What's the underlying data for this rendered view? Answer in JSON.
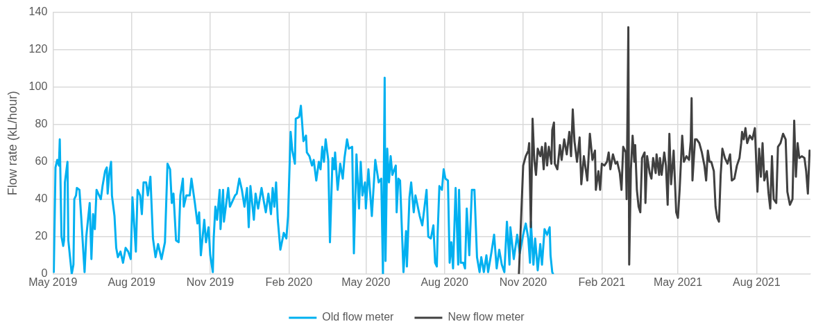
{
  "chart_data": {
    "type": "line",
    "ylabel": "Flow rate (kL/hour)",
    "xlim": [
      "2019-05-01",
      "2021-10-03"
    ],
    "xticks": [
      {
        "value": "2019-05-01",
        "label": "May 2019"
      },
      {
        "value": "2019-08-01",
        "label": "Aug 2019"
      },
      {
        "value": "2019-11-01",
        "label": "Nov 2019"
      },
      {
        "value": "2020-02-01",
        "label": "Feb 2020"
      },
      {
        "value": "2020-05-01",
        "label": "May 2020"
      },
      {
        "value": "2020-08-01",
        "label": "Aug 2020"
      },
      {
        "value": "2020-11-01",
        "label": "Nov 2020"
      },
      {
        "value": "2021-02-01",
        "label": "Feb 2021"
      },
      {
        "value": "2021-05-01",
        "label": "May 2021"
      },
      {
        "value": "2021-08-01",
        "label": "Aug 2021"
      }
    ],
    "ylim": [
      0,
      140
    ],
    "yticks": [
      0,
      20,
      40,
      60,
      80,
      100,
      120,
      140
    ],
    "grid": true,
    "legend": "bottom",
    "marker": "none",
    "line_style": "solid",
    "series": [
      {
        "name": "Old flow meter",
        "color": "#00b0f0",
        "x": [
          "2019-05-02",
          "2019-05-04",
          "2019-05-06",
          "2019-05-08",
          "2019-05-09",
          "2019-05-11",
          "2019-05-13",
          "2019-05-14",
          "2019-05-15",
          "2019-05-18",
          "2019-05-19",
          "2019-05-23",
          "2019-05-25",
          "2019-05-26",
          "2019-05-28",
          "2019-05-29",
          "2019-06-01",
          "2019-06-03",
          "2019-06-07",
          "2019-06-09",
          "2019-06-13",
          "2019-06-15",
          "2019-06-17",
          "2019-06-19",
          "2019-06-21",
          "2019-06-26",
          "2019-06-28",
          "2019-07-01",
          "2019-07-03",
          "2019-07-04",
          "2019-07-06",
          "2019-07-08",
          "2019-07-09",
          "2019-07-12",
          "2019-07-14",
          "2019-07-16",
          "2019-07-19",
          "2019-07-22",
          "2019-07-25",
          "2019-07-28",
          "2019-07-31",
          "2019-08-02",
          "2019-08-06",
          "2019-08-08",
          "2019-08-11",
          "2019-08-13",
          "2019-08-15",
          "2019-08-18",
          "2019-08-20",
          "2019-08-23",
          "2019-08-26",
          "2019-08-29",
          "2019-09-01",
          "2019-09-05",
          "2019-09-09",
          "2019-09-12",
          "2019-09-15",
          "2019-09-17",
          "2019-09-19",
          "2019-09-22",
          "2019-09-25",
          "2019-09-27",
          "2019-09-30",
          "2019-10-01",
          "2019-10-04",
          "2019-10-08",
          "2019-10-10",
          "2019-10-14",
          "2019-10-17",
          "2019-10-19",
          "2019-10-21",
          "2019-10-25",
          "2019-10-27",
          "2019-10-30",
          "2019-11-01",
          "2019-11-04",
          "2019-11-05",
          "2019-11-07",
          "2019-11-09",
          "2019-11-12",
          "2019-11-13",
          "2019-11-16",
          "2019-11-17",
          "2019-11-22",
          "2019-11-24",
          "2019-11-30",
          "2019-12-02",
          "2019-12-05",
          "2019-12-08",
          "2019-12-11",
          "2019-12-14",
          "2019-12-16",
          "2019-12-18",
          "2019-12-22",
          "2019-12-24",
          "2019-12-27",
          "2019-12-31",
          "2020-01-03",
          "2020-01-05",
          "2020-01-08",
          "2020-01-11",
          "2020-01-13",
          "2020-01-15",
          "2020-01-17",
          "2020-01-19",
          "2020-01-22",
          "2020-01-26",
          "2020-01-29",
          "2020-01-31",
          "2020-02-03",
          "2020-02-05",
          "2020-02-08",
          "2020-02-09",
          "2020-02-13",
          "2020-02-15",
          "2020-02-18",
          "2020-02-21",
          "2020-02-22",
          "2020-02-25",
          "2020-02-28",
          "2020-03-01",
          "2020-03-04",
          "2020-03-07",
          "2020-03-09",
          "2020-03-11",
          "2020-03-13",
          "2020-03-15",
          "2020-03-18",
          "2020-03-20",
          "2020-03-23",
          "2020-03-25",
          "2020-03-26",
          "2020-03-29",
          "2020-04-01",
          "2020-04-04",
          "2020-04-06",
          "2020-04-09",
          "2020-04-11",
          "2020-04-15",
          "2020-04-17",
          "2020-04-20",
          "2020-04-23",
          "2020-04-25",
          "2020-04-27",
          "2020-04-30",
          "2020-05-01",
          "2020-05-04",
          "2020-05-08",
          "2020-05-12",
          "2020-05-16",
          "2020-05-19",
          "2020-05-21",
          "2020-05-23",
          "2020-05-24",
          "2020-05-26",
          "2020-05-28",
          "2020-05-30",
          "2020-06-01",
          "2020-06-05",
          "2020-06-06",
          "2020-06-08",
          "2020-06-10",
          "2020-06-14",
          "2020-06-17",
          "2020-06-18",
          "2020-06-21",
          "2020-06-23",
          "2020-06-26",
          "2020-06-28",
          "2020-07-03",
          "2020-07-06",
          "2020-07-11",
          "2020-07-13",
          "2020-07-16",
          "2020-07-19",
          "2020-07-21",
          "2020-07-23",
          "2020-07-24",
          "2020-07-26",
          "2020-07-29",
          "2020-07-31",
          "2020-08-02",
          "2020-08-05",
          "2020-08-07",
          "2020-08-09",
          "2020-08-11",
          "2020-08-14",
          "2020-08-17",
          "2020-08-18",
          "2020-08-20",
          "2020-08-23",
          "2020-08-25",
          "2020-08-27",
          "2020-08-30",
          "2020-09-02",
          "2020-09-05",
          "2020-09-08",
          "2020-09-11",
          "2020-09-13",
          "2020-09-16",
          "2020-09-19",
          "2020-09-21",
          "2020-09-25",
          "2020-09-28",
          "2020-10-01",
          "2020-10-04",
          "2020-10-07",
          "2020-10-10",
          "2020-10-13",
          "2020-10-16",
          "2020-10-17",
          "2020-10-21",
          "2020-10-25",
          "2020-10-28",
          "2020-11-01",
          "2020-11-04",
          "2020-11-07",
          "2020-11-09",
          "2020-11-10",
          "2020-11-13",
          "2020-11-15",
          "2020-11-18",
          "2020-11-21",
          "2020-11-23",
          "2020-11-26",
          "2020-11-29",
          "2020-12-02",
          "2020-12-03",
          "2020-12-05",
          "2020-12-06"
        ],
        "values": [
          1,
          57,
          61,
          58,
          72,
          20,
          15,
          18,
          49,
          60,
          18,
          0,
          5,
          40,
          42,
          46,
          45,
          31,
          1,
          20,
          38,
          8,
          32,
          24,
          45,
          40,
          47,
          55,
          57,
          43,
          54,
          60,
          42,
          31,
          14,
          9,
          12,
          6,
          14,
          12,
          8,
          41,
          12,
          45,
          42,
          32,
          49,
          49,
          42,
          52,
          19,
          9,
          16,
          8,
          17,
          59,
          56,
          38,
          43,
          18,
          17,
          42,
          51,
          36,
          42,
          42,
          51,
          38,
          27,
          33,
          10,
          29,
          17,
          25,
          10,
          1,
          19,
          36,
          29,
          45,
          24,
          45,
          28,
          46,
          36,
          42,
          43,
          51,
          45,
          36,
          46,
          25,
          47,
          29,
          43,
          35,
          46,
          38,
          33,
          43,
          32,
          46,
          36,
          49,
          29,
          13,
          22,
          19,
          31,
          76,
          66,
          59,
          83,
          84,
          90,
          71,
          74,
          65,
          63,
          58,
          61,
          50,
          60,
          56,
          68,
          60,
          72,
          61,
          17,
          62,
          56,
          65,
          45,
          59,
          51,
          62,
          72,
          67,
          68,
          11,
          64,
          35,
          60,
          42,
          49,
          35,
          56,
          31,
          61,
          49,
          51,
          0,
          105,
          7,
          67,
          49,
          63,
          53,
          58,
          33,
          51,
          50,
          1,
          23,
          4,
          41,
          49,
          33,
          42,
          31,
          26,
          45,
          20,
          19,
          26,
          6,
          4,
          22,
          47,
          45,
          56,
          51,
          50,
          6,
          17,
          3,
          46,
          5,
          45,
          6,
          6,
          3,
          35,
          10,
          45,
          45,
          9,
          1,
          9,
          1,
          10,
          1,
          12,
          21,
          3,
          13,
          5,
          1,
          28,
          5,
          25,
          8,
          21,
          11,
          21,
          27,
          19,
          6,
          28,
          5,
          19,
          2,
          16,
          5,
          24,
          21,
          25,
          10,
          1,
          0
        ]
      },
      {
        "name": "New flow meter",
        "color": "#404040",
        "x": [
          "2020-10-27",
          "2020-11-01",
          "2020-11-04",
          "2020-11-07",
          "2020-11-08",
          "2020-11-10",
          "2020-11-12",
          "2020-11-14",
          "2020-11-16",
          "2020-11-18",
          "2020-11-21",
          "2020-11-23",
          "2020-11-25",
          "2020-11-27",
          "2020-11-29",
          "2020-12-01",
          "2020-12-04",
          "2020-12-05",
          "2020-12-07",
          "2020-12-08",
          "2020-12-11",
          "2020-12-14",
          "2020-12-16",
          "2020-12-19",
          "2020-12-22",
          "2020-12-25",
          "2020-12-27",
          "2020-12-29",
          "2020-12-31",
          "2021-01-03",
          "2021-01-06",
          "2021-01-08",
          "2021-01-11",
          "2021-01-15",
          "2021-01-18",
          "2021-01-21",
          "2021-01-24",
          "2021-01-25",
          "2021-01-28",
          "2021-01-30",
          "2021-02-01",
          "2021-02-04",
          "2021-02-07",
          "2021-02-09",
          "2021-02-11",
          "2021-02-14",
          "2021-02-17",
          "2021-02-19",
          "2021-02-22",
          "2021-02-24",
          "2021-02-26",
          "2021-03-01",
          "2021-03-02",
          "2021-03-04",
          "2021-03-05",
          "2021-03-07",
          "2021-03-09",
          "2021-03-11",
          "2021-03-12",
          "2021-03-14",
          "2021-03-16",
          "2021-03-18",
          "2021-03-20",
          "2021-03-23",
          "2021-03-24",
          "2021-03-26",
          "2021-03-29",
          "2021-03-31",
          "2021-04-02",
          "2021-04-05",
          "2021-04-06",
          "2021-04-09",
          "2021-04-10",
          "2021-04-12",
          "2021-04-15",
          "2021-04-17",
          "2021-04-19",
          "2021-04-21",
          "2021-04-23",
          "2021-04-26",
          "2021-04-29",
          "2021-05-01",
          "2021-05-03",
          "2021-05-06",
          "2021-05-08",
          "2021-05-11",
          "2021-05-14",
          "2021-05-16",
          "2021-05-17",
          "2021-05-18",
          "2021-05-21",
          "2021-05-23",
          "2021-05-26",
          "2021-05-29",
          "2021-06-01",
          "2021-06-03",
          "2021-06-05",
          "2021-06-07",
          "2021-06-09",
          "2021-06-12",
          "2021-06-14",
          "2021-06-16",
          "2021-06-18",
          "2021-06-20",
          "2021-06-22",
          "2021-06-25",
          "2021-06-28",
          "2021-07-01",
          "2021-07-03",
          "2021-07-06",
          "2021-07-09",
          "2021-07-12",
          "2021-07-14",
          "2021-07-15",
          "2021-07-17",
          "2021-07-19",
          "2021-07-21",
          "2021-07-24",
          "2021-07-27",
          "2021-07-30",
          "2021-08-02",
          "2021-08-04",
          "2021-08-06",
          "2021-08-08",
          "2021-08-10",
          "2021-08-13",
          "2021-08-15",
          "2021-08-17",
          "2021-08-19",
          "2021-08-21",
          "2021-08-24",
          "2021-08-26",
          "2021-08-29",
          "2021-09-01",
          "2021-09-04",
          "2021-09-06",
          "2021-09-09",
          "2021-09-12",
          "2021-09-14",
          "2021-09-16",
          "2021-09-18",
          "2021-09-20",
          "2021-09-23",
          "2021-09-26",
          "2021-09-28",
          "2021-09-30",
          "2021-10-02"
        ],
        "values": [
          0,
          58,
          63,
          66,
          70,
          25,
          83,
          61,
          53,
          67,
          63,
          68,
          56,
          70,
          58,
          68,
          59,
          77,
          81,
          59,
          56,
          69,
          61,
          72,
          64,
          76,
          63,
          88,
          71,
          60,
          73,
          48,
          63,
          50,
          75,
          61,
          66,
          45,
          55,
          45,
          59,
          58,
          60,
          65,
          56,
          64,
          59,
          60,
          54,
          45,
          68,
          65,
          40,
          132,
          5,
          56,
          74,
          60,
          69,
          45,
          36,
          33,
          62,
          65,
          38,
          63,
          54,
          51,
          62,
          54,
          64,
          53,
          62,
          53,
          65,
          58,
          37,
          75,
          48,
          66,
          33,
          30,
          45,
          74,
          60,
          63,
          61,
          71,
          94,
          50,
          72,
          72,
          70,
          65,
          58,
          50,
          66,
          60,
          60,
          55,
          36,
          30,
          28,
          53,
          67,
          62,
          59,
          64,
          50,
          51,
          58,
          62,
          70,
          76,
          72,
          78,
          70,
          74,
          72,
          78,
          44,
          67,
          52,
          70,
          50,
          55,
          43,
          35,
          63,
          40,
          38,
          68,
          70,
          75,
          72,
          44,
          37,
          40,
          82,
          52,
          70,
          62,
          63,
          62,
          55,
          43,
          66
        ]
      }
    ]
  }
}
